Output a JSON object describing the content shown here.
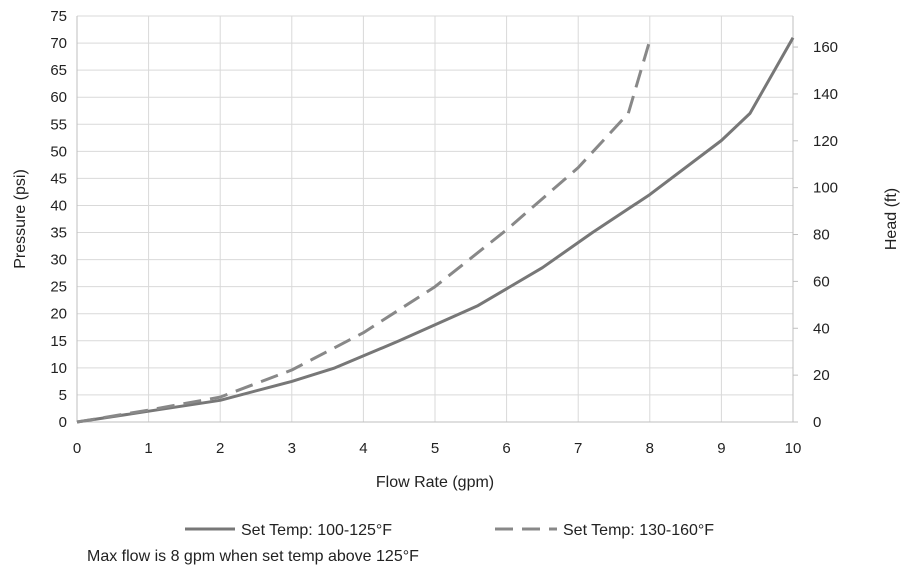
{
  "chart_data": {
    "type": "line",
    "title": "",
    "xlabel": "Flow Rate (gpm)",
    "ylabel": "Pressure (psi)",
    "y2label": "Head (ft)",
    "xlim": [
      0,
      10
    ],
    "ylim": [
      0,
      75
    ],
    "y2lim": [
      0,
      173.25
    ],
    "x_ticks": [
      "0",
      "1",
      "2",
      "3",
      "4",
      "5",
      "6",
      "7",
      "8",
      "9",
      "10"
    ],
    "y_ticks": [
      "0",
      "5",
      "10",
      "15",
      "20",
      "25",
      "30",
      "35",
      "40",
      "45",
      "50",
      "55",
      "60",
      "65",
      "70",
      "75"
    ],
    "y2_ticks": [
      "0",
      "20",
      "40",
      "60",
      "80",
      "100",
      "120",
      "140",
      "160"
    ],
    "grid": true,
    "legend_position": "bottom",
    "series": [
      {
        "name": "Set Temp: 100-125°F",
        "style": "solid",
        "color": "#777777",
        "x": [
          0,
          1,
          2,
          3,
          3.6,
          4.5,
          5.6,
          6.5,
          7.2,
          8,
          9,
          9.4,
          10
        ],
        "y": [
          0,
          2,
          4,
          7.5,
          10,
          15,
          21.5,
          28.5,
          35,
          42,
          52,
          57,
          71
        ]
      },
      {
        "name": "Set Temp: 130-160°F",
        "style": "dashed",
        "color": "#888888",
        "x": [
          0,
          1,
          2,
          3,
          4,
          5,
          6,
          7,
          7.7,
          8
        ],
        "y": [
          0,
          2.2,
          4.6,
          9.6,
          16.5,
          25,
          35.5,
          47,
          57,
          70.5
        ]
      }
    ]
  },
  "note": "Max flow is 8 gpm when set temp above 125°F"
}
